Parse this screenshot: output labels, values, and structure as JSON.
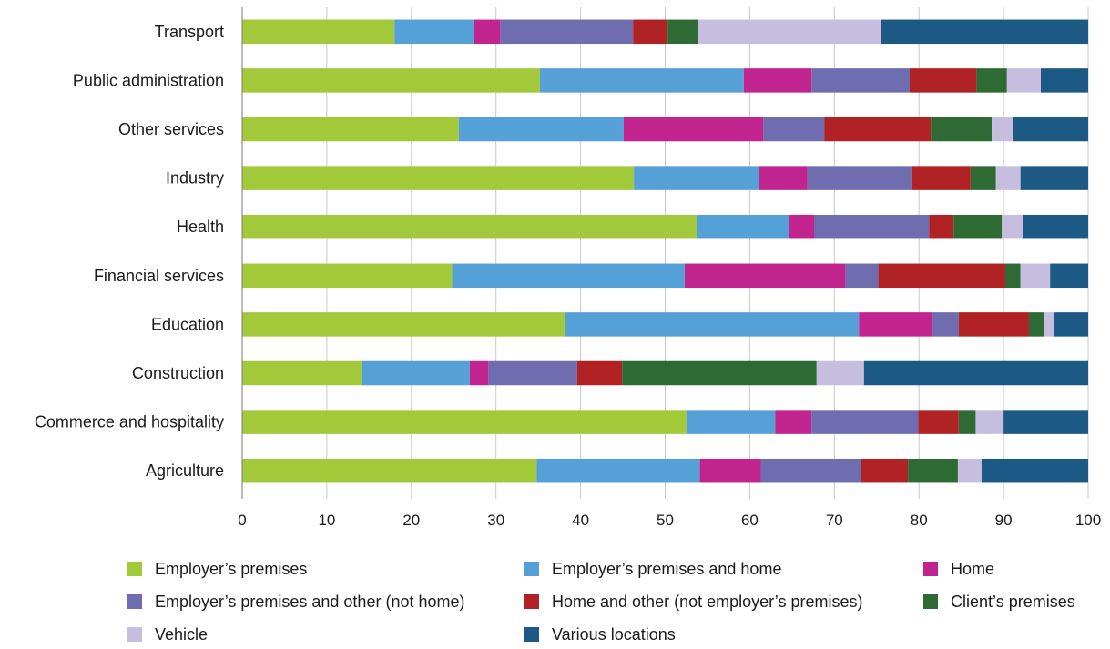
{
  "chart_data": {
    "type": "bar",
    "orientation": "horizontal",
    "stacked": true,
    "title": "",
    "xlabel": "",
    "ylabel": "",
    "xlim": [
      0,
      100
    ],
    "xticks": [
      "0",
      "10",
      "20",
      "30",
      "40",
      "50",
      "60",
      "70",
      "80",
      "90",
      "100"
    ],
    "grid": "vertical",
    "legend_position": "bottom",
    "categories": [
      "Transport",
      "Public administration",
      "Other services",
      "Industry",
      "Health",
      "Financial services",
      "Education",
      "Construction",
      "Commerce and hospitality",
      "Agriculture"
    ],
    "series": [
      {
        "name": "Employer’s premises",
        "color": "#a2c93a",
        "values": [
          18.0,
          35.2,
          25.6,
          46.3,
          53.7,
          24.8,
          38.2,
          14.2,
          52.5,
          34.8
        ]
      },
      {
        "name": "Employer’s premises and home",
        "color": "#56a0d8",
        "values": [
          9.4,
          24.1,
          19.5,
          14.8,
          10.9,
          27.5,
          34.7,
          12.7,
          10.5,
          19.3
        ]
      },
      {
        "name": "Home",
        "color": "#c2248f",
        "values": [
          3.1,
          8.0,
          16.5,
          5.7,
          3.0,
          19.0,
          8.7,
          2.2,
          4.3,
          7.2
        ]
      },
      {
        "name": "Employer’s premises and other (not home)",
        "color": "#6f6cb0",
        "values": [
          15.7,
          11.6,
          7.2,
          12.4,
          13.6,
          3.9,
          3.1,
          10.5,
          12.6,
          11.8
        ]
      },
      {
        "name": "Home and other (not employer’s premises)",
        "color": "#b12225",
        "values": [
          4.1,
          7.9,
          12.6,
          6.9,
          2.9,
          15.0,
          8.3,
          5.3,
          4.8,
          5.6
        ]
      },
      {
        "name": "Client’s premises",
        "color": "#2e6a33",
        "values": [
          3.6,
          3.6,
          7.2,
          3.0,
          5.7,
          1.8,
          1.8,
          23.0,
          2.0,
          5.9
        ]
      },
      {
        "name": "Vehicle",
        "color": "#c7bedf",
        "values": [
          21.6,
          4.0,
          2.5,
          2.9,
          2.5,
          3.5,
          1.2,
          5.6,
          3.3,
          2.8
        ]
      },
      {
        "name": "Various locations",
        "color": "#1c5a85",
        "values": [
          24.5,
          5.6,
          8.9,
          8.0,
          7.7,
          4.5,
          4.0,
          26.5,
          10.0,
          12.6
        ]
      }
    ]
  }
}
